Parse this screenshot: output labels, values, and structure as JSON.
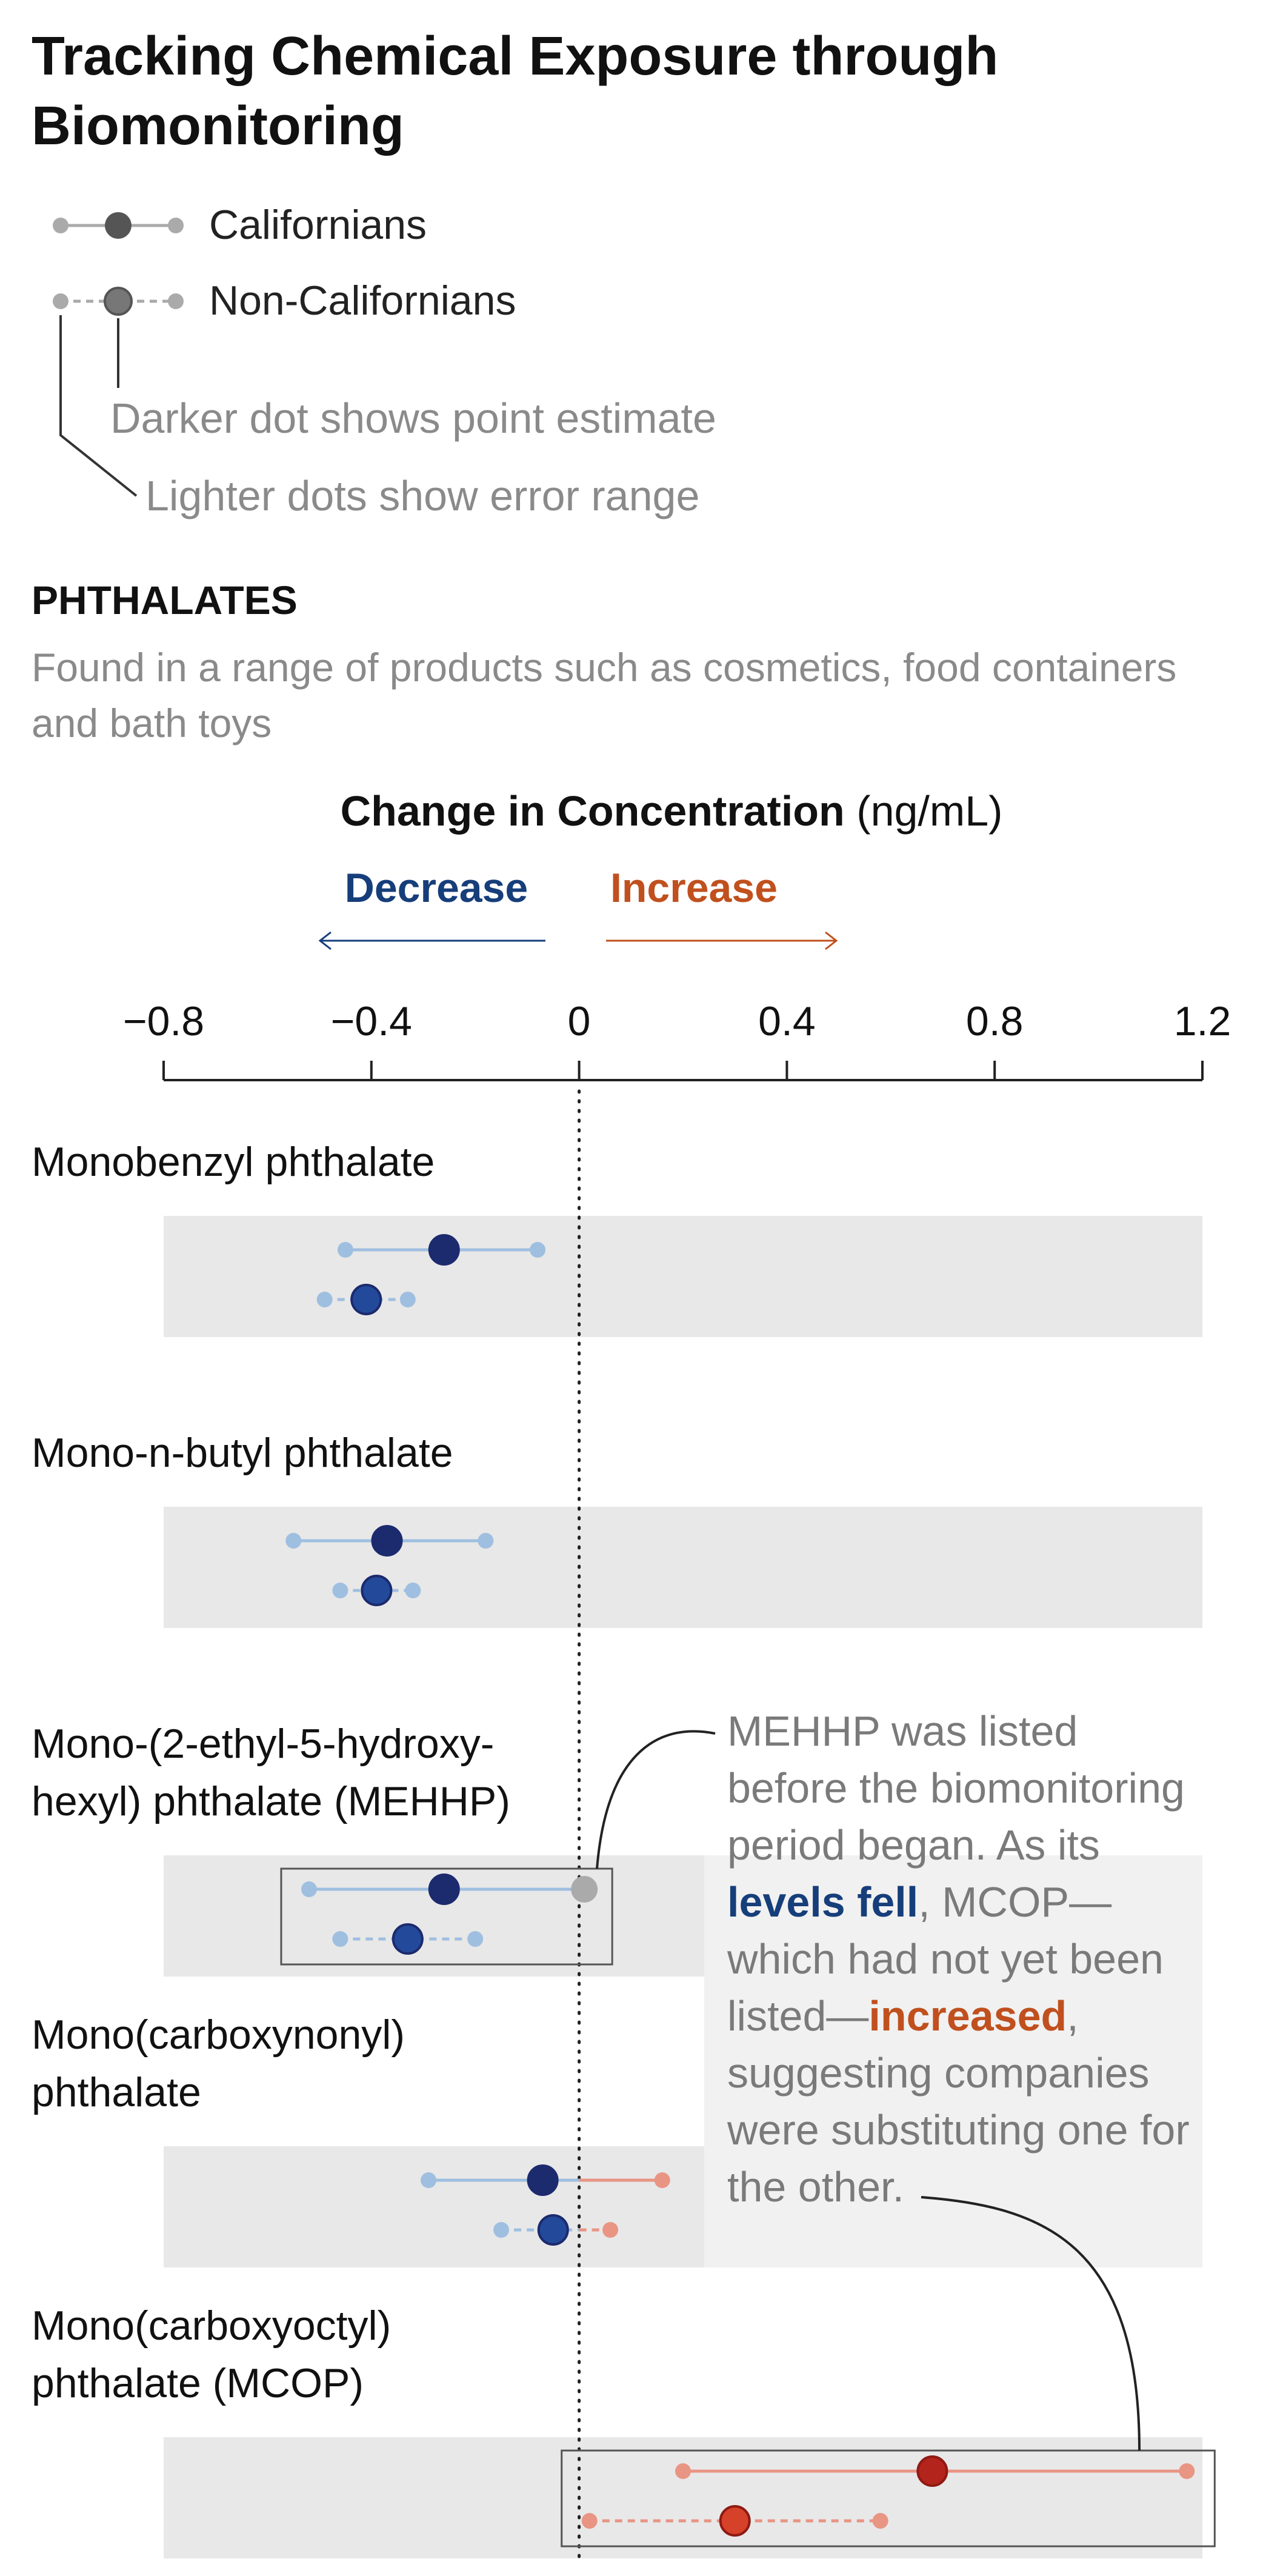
{
  "title": [
    "Tracking Chemical Exposure through",
    "Biomonitoring"
  ],
  "legend": {
    "californians": "Californians",
    "non_californians": "Non-Californians",
    "point_note": "Darker dot shows point estimate",
    "range_note": "Lighter dots show error range"
  },
  "section": {
    "title": "PHTHALATES",
    "description": [
      "Found in a range of products such as cosmetics, food containers",
      "and bath toys"
    ]
  },
  "axis": {
    "title_bold": "Change in Concentration",
    "title_unit": " (ng/mL)",
    "decrease_label": "Decrease",
    "increase_label": "Increase"
  },
  "annotation": {
    "lines": [
      [
        {
          "t": "MEHHP was listed"
        }
      ],
      [
        {
          "t": "before the biomonitoring"
        }
      ],
      [
        {
          "t": "period began. As its"
        }
      ],
      [
        {
          "t": "levels fell",
          "s": "decrease"
        },
        {
          "t": ", MCOP—"
        }
      ],
      [
        {
          "t": "which had not yet been"
        }
      ],
      [
        {
          "t": "listed—"
        },
        {
          "t": "increased",
          "s": "increase"
        },
        {
          "t": ","
        }
      ],
      [
        {
          "t": "suggesting companies"
        }
      ],
      [
        {
          "t": "were substituting one for"
        }
      ],
      [
        {
          "t": "the other."
        }
      ]
    ]
  },
  "colors": {
    "decrease_dark": "#1c2a6e",
    "decrease_mid": "#234a9a",
    "decrease_light": "#9fbfe0",
    "increase_dark": "#b3241c",
    "increase_mid": "#d6412a",
    "increase_light": "#e99584",
    "neutral_point": "#aaaaaa",
    "legend_dark": "#555555",
    "legend_light": "#aaaaaa",
    "row_bg": "#e8e8e8",
    "decrease_text": "#163e7a",
    "increase_text": "#c0501e"
  },
  "chart_data": {
    "type": "dot-range",
    "xlabel": "Change in Concentration (ng/mL)",
    "xlim": [
      -0.8,
      1.2
    ],
    "ticks": [
      -0.8,
      -0.4,
      0,
      0.4,
      0.8,
      1.2
    ],
    "tick_labels": [
      "−0.8",
      "−0.4",
      "0",
      "0.4",
      "0.8",
      "1.2"
    ],
    "series": [
      {
        "name": "Californians",
        "style": "solid"
      },
      {
        "name": "Non-Californians",
        "style": "dashed"
      }
    ],
    "rows": [
      {
        "label": [
          "Monobenzyl phthalate"
        ],
        "californians": {
          "estimate": -0.26,
          "low": -0.45,
          "high": -0.08
        },
        "non_californians": {
          "estimate": -0.41,
          "low": -0.49,
          "high": -0.33
        }
      },
      {
        "label": [
          "Mono-n-butyl phthalate"
        ],
        "californians": {
          "estimate": -0.37,
          "low": -0.55,
          "high": -0.18
        },
        "non_californians": {
          "estimate": -0.39,
          "low": -0.46,
          "high": -0.32
        }
      },
      {
        "label": [
          "Mono-(2-ethyl-5-hydroxy-",
          "hexyl) phthalate (MEHHP)"
        ],
        "highlight": true,
        "californians": {
          "estimate": -0.26,
          "low": -0.52,
          "high": 0.01
        },
        "non_californians": {
          "estimate": -0.33,
          "low": -0.46,
          "high": -0.2
        }
      },
      {
        "label": [
          "Mono(carboxynonyl)",
          "phthalate"
        ],
        "californians": {
          "estimate": -0.07,
          "low": -0.29,
          "high": 0.16
        },
        "non_californians": {
          "estimate": -0.05,
          "low": -0.15,
          "high": 0.06
        }
      },
      {
        "label": [
          "Mono(carboxyoctyl)",
          "phthalate (MCOP)"
        ],
        "highlight": true,
        "californians": {
          "estimate": 0.68,
          "low": 0.2,
          "high": 1.17
        },
        "non_californians": {
          "estimate": 0.3,
          "low": 0.02,
          "high": 0.58
        }
      }
    ]
  }
}
